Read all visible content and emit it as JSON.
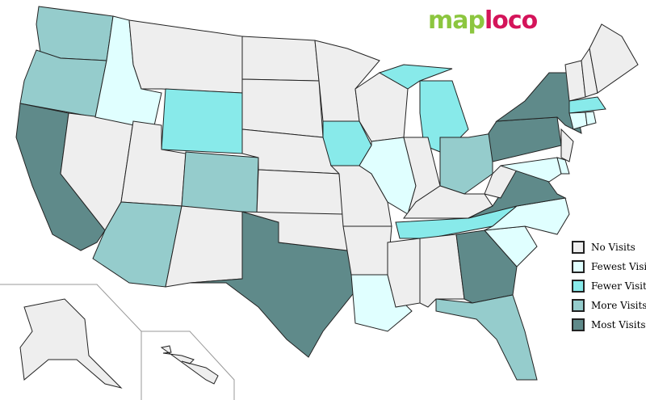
{
  "logo": {
    "part1": "map",
    "part2": "loco"
  },
  "legend": [
    {
      "label": "No Visits",
      "color": "#eeeeee"
    },
    {
      "label": "Fewest Visits",
      "color": "#e0ffff"
    },
    {
      "label": "Fewer Visits",
      "color": "#88eaea"
    },
    {
      "label": "More Visits",
      "color": "#95cccc"
    },
    {
      "label": "Most Visits",
      "color": "#5f8a8a"
    }
  ],
  "state_levels": {
    "Most Visits": [
      "CA",
      "TX",
      "GA",
      "VA",
      "PA",
      "NY"
    ],
    "More Visits": [
      "WA",
      "OR",
      "CO",
      "AZ",
      "OH",
      "FL"
    ],
    "Fewer Visits": [
      "WY",
      "IA",
      "MI",
      "TN",
      "MA"
    ],
    "Fewest Visits": [
      "ID",
      "IL",
      "LA",
      "NC",
      "SC",
      "CT",
      "RI",
      "MD",
      "DE"
    ],
    "No Visits": [
      "MT",
      "NV",
      "UT",
      "NM",
      "ND",
      "SD",
      "NE",
      "KS",
      "OK",
      "MN",
      "MO",
      "AR",
      "WI",
      "IN",
      "KY",
      "MS",
      "AL",
      "WV",
      "NJ",
      "VT",
      "NH",
      "ME",
      "AK",
      "HI"
    ]
  }
}
